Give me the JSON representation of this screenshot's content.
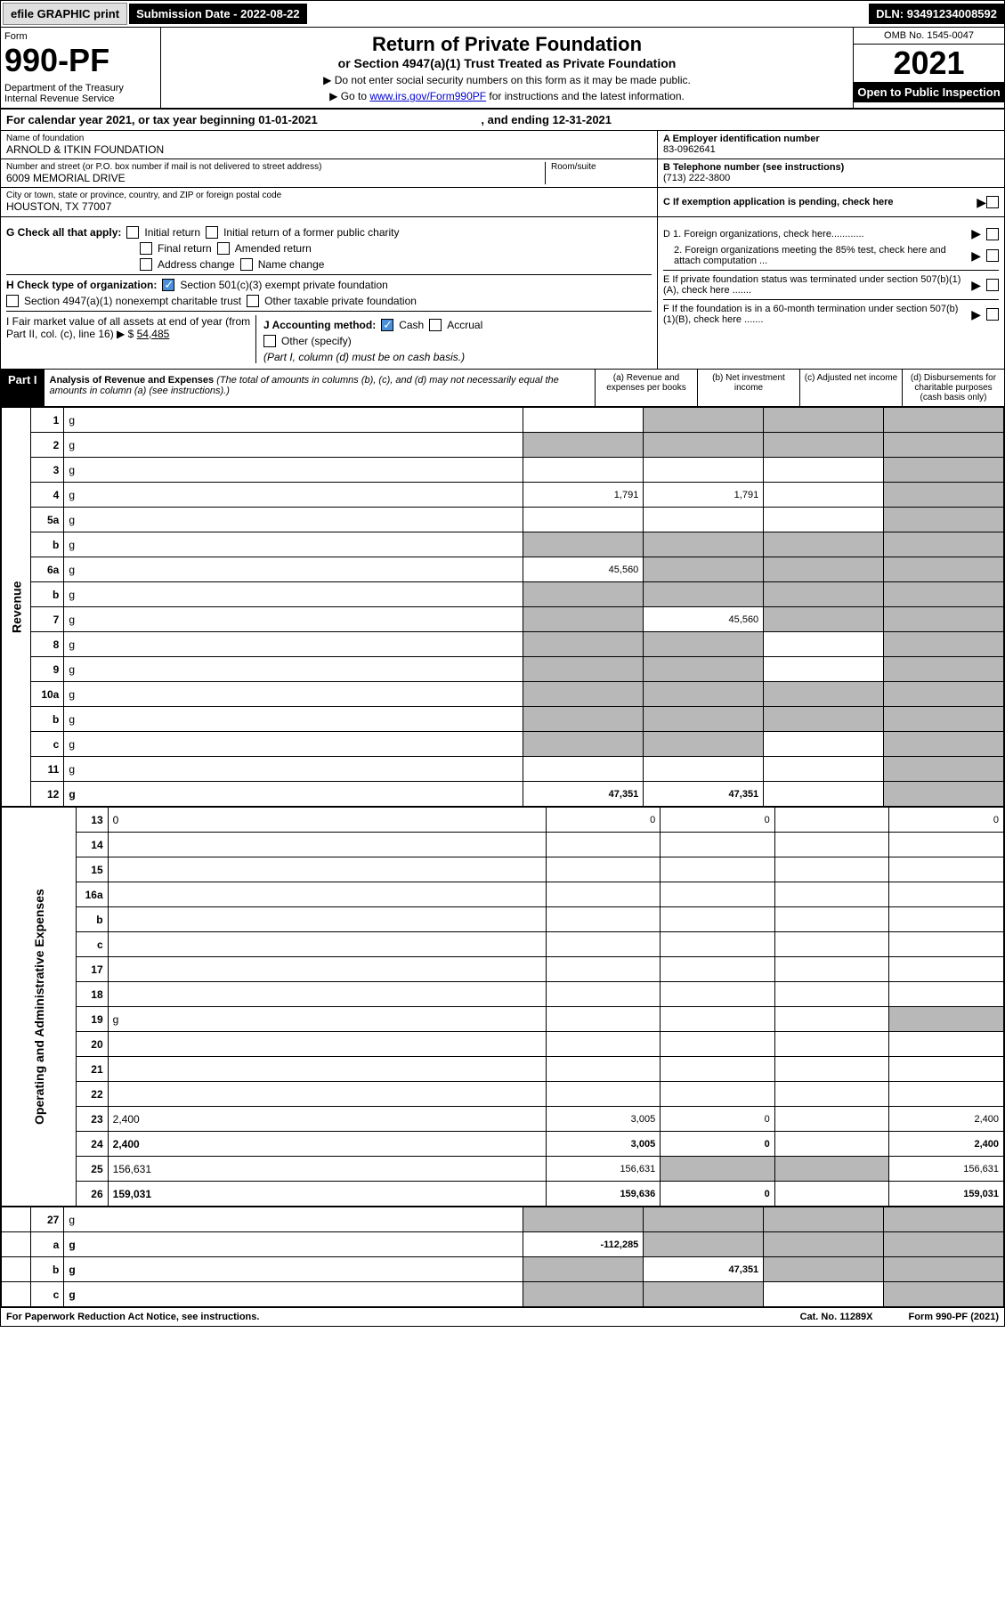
{
  "topbar": {
    "efile": "efile GRAPHIC print",
    "subdate_label": "Submission Date - ",
    "subdate": "2022-08-22",
    "dln_label": "DLN: ",
    "dln": "93491234008592"
  },
  "header": {
    "form_label": "Form",
    "form_num": "990-PF",
    "dept": "Department of the Treasury\nInternal Revenue Service",
    "title": "Return of Private Foundation",
    "subtitle": "or Section 4947(a)(1) Trust Treated as Private Foundation",
    "note1": "▶ Do not enter social security numbers on this form as it may be made public.",
    "note2_pre": "▶ Go to ",
    "note2_link": "www.irs.gov/Form990PF",
    "note2_post": " for instructions and the latest information.",
    "omb": "OMB No. 1545-0047",
    "year": "2021",
    "open": "Open to Public Inspection"
  },
  "calyear": {
    "text": "For calendar year 2021, or tax year beginning 01-01-2021",
    "ending": ", and ending 12-31-2021"
  },
  "id": {
    "name_label": "Name of foundation",
    "name": "ARNOLD & ITKIN FOUNDATION",
    "addr_label": "Number and street (or P.O. box number if mail is not delivered to street address)",
    "addr": "6009 MEMORIAL DRIVE",
    "room_label": "Room/suite",
    "city_label": "City or town, state or province, country, and ZIP or foreign postal code",
    "city": "HOUSTON, TX  77007",
    "ein_label": "A Employer identification number",
    "ein": "83-0962641",
    "phone_label": "B Telephone number (see instructions)",
    "phone": "(713) 222-3800",
    "c_label": "C If exemption application is pending, check here"
  },
  "checks": {
    "g_label": "G Check all that apply:",
    "g_opts": [
      "Initial return",
      "Initial return of a former public charity",
      "Final return",
      "Amended return",
      "Address change",
      "Name change"
    ],
    "h_label": "H Check type of organization:",
    "h1": "Section 501(c)(3) exempt private foundation",
    "h2": "Section 4947(a)(1) nonexempt charitable trust",
    "h3": "Other taxable private foundation",
    "i_label": "I Fair market value of all assets at end of year (from Part II, col. (c), line 16) ▶ $",
    "i_val": "54,485",
    "j_label": "J Accounting method:",
    "j_cash": "Cash",
    "j_accrual": "Accrual",
    "j_other": "Other (specify)",
    "j_note": "(Part I, column (d) must be on cash basis.)",
    "d1": "D 1. Foreign organizations, check here............",
    "d2": "2. Foreign organizations meeting the 85% test, check here and attach computation ...",
    "e": "E If private foundation status was terminated under section 507(b)(1)(A), check here .......",
    "f": "F If the foundation is in a 60-month termination under section 507(b)(1)(B), check here .......",
    "arrow": "▶"
  },
  "part1": {
    "label": "Part I",
    "title": "Analysis of Revenue and Expenses",
    "note": " (The total of amounts in columns (b), (c), and (d) may not necessarily equal the amounts in column (a) (see instructions).)",
    "col_a": "(a)  Revenue and expenses per books",
    "col_b": "(b)  Net investment income",
    "col_c": "(c)  Adjusted net income",
    "col_d": "(d)  Disbursements for charitable purposes (cash basis only)"
  },
  "rotate": {
    "revenue": "Revenue",
    "expenses": "Operating and Administrative Expenses"
  },
  "rows": [
    {
      "n": "1",
      "d": "g",
      "a": "",
      "b": "g",
      "c": "g"
    },
    {
      "n": "2",
      "d": "g",
      "a": "g",
      "b": "g",
      "c": "g"
    },
    {
      "n": "3",
      "d": "g",
      "a": "",
      "b": "",
      "c": ""
    },
    {
      "n": "4",
      "d": "g",
      "a": "1,791",
      "b": "1,791",
      "c": ""
    },
    {
      "n": "5a",
      "d": "g",
      "a": "",
      "b": "",
      "c": ""
    },
    {
      "n": "b",
      "d": "g",
      "a": "g",
      "b": "g",
      "c": "g"
    },
    {
      "n": "6a",
      "d": "g",
      "a": "45,560",
      "b": "g",
      "c": "g"
    },
    {
      "n": "b",
      "d": "g",
      "a": "g",
      "b": "g",
      "c": "g"
    },
    {
      "n": "7",
      "d": "g",
      "a": "g",
      "b": "45,560",
      "c": "g"
    },
    {
      "n": "8",
      "d": "g",
      "a": "g",
      "b": "g",
      "c": ""
    },
    {
      "n": "9",
      "d": "g",
      "a": "g",
      "b": "g",
      "c": ""
    },
    {
      "n": "10a",
      "d": "g",
      "a": "g",
      "b": "g",
      "c": "g"
    },
    {
      "n": "b",
      "d": "g",
      "a": "g",
      "b": "g",
      "c": "g"
    },
    {
      "n": "c",
      "d": "g",
      "a": "g",
      "b": "g",
      "c": ""
    },
    {
      "n": "11",
      "d": "g",
      "a": "",
      "b": "",
      "c": ""
    },
    {
      "n": "12",
      "d": "g",
      "a": "47,351",
      "b": "47,351",
      "c": "",
      "bold": true
    }
  ],
  "exprows": [
    {
      "n": "13",
      "d": "0",
      "a": "0",
      "b": "0",
      "c": ""
    },
    {
      "n": "14",
      "d": "",
      "a": "",
      "b": "",
      "c": ""
    },
    {
      "n": "15",
      "d": "",
      "a": "",
      "b": "",
      "c": ""
    },
    {
      "n": "16a",
      "d": "",
      "a": "",
      "b": "",
      "c": ""
    },
    {
      "n": "b",
      "d": "",
      "a": "",
      "b": "",
      "c": ""
    },
    {
      "n": "c",
      "d": "",
      "a": "",
      "b": "",
      "c": ""
    },
    {
      "n": "17",
      "d": "",
      "a": "",
      "b": "",
      "c": ""
    },
    {
      "n": "18",
      "d": "",
      "a": "",
      "b": "",
      "c": ""
    },
    {
      "n": "19",
      "d": "g",
      "a": "",
      "b": "",
      "c": ""
    },
    {
      "n": "20",
      "d": "",
      "a": "",
      "b": "",
      "c": ""
    },
    {
      "n": "21",
      "d": "",
      "a": "",
      "b": "",
      "c": ""
    },
    {
      "n": "22",
      "d": "",
      "a": "",
      "b": "",
      "c": ""
    },
    {
      "n": "23",
      "d": "2,400",
      "a": "3,005",
      "b": "0",
      "c": ""
    },
    {
      "n": "24",
      "d": "2,400",
      "a": "3,005",
      "b": "0",
      "c": "",
      "bold": true
    },
    {
      "n": "25",
      "d": "156,631",
      "a": "156,631",
      "b": "g",
      "c": "g"
    },
    {
      "n": "26",
      "d": "159,031",
      "a": "159,636",
      "b": "0",
      "c": "",
      "bold": true
    }
  ],
  "botrows": [
    {
      "n": "27",
      "d": "g",
      "a": "g",
      "b": "g",
      "c": "g"
    },
    {
      "n": "a",
      "d": "g",
      "a": "-112,285",
      "b": "g",
      "c": "g",
      "bold": true
    },
    {
      "n": "b",
      "d": "g",
      "a": "g",
      "b": "47,351",
      "c": "g",
      "bold": true
    },
    {
      "n": "c",
      "d": "g",
      "a": "g",
      "b": "g",
      "c": "",
      "bold": true
    }
  ],
  "footer": {
    "left": "For Paperwork Reduction Act Notice, see instructions.",
    "cat": "Cat. No. 11289X",
    "form": "Form 990-PF (2021)"
  }
}
